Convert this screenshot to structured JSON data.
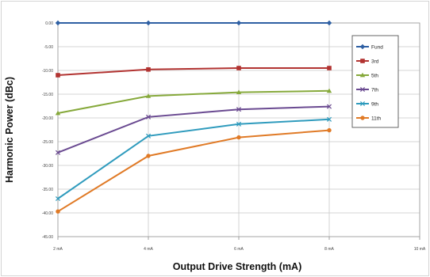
{
  "chart_data": {
    "type": "line",
    "title": "",
    "xlabel": "Output Drive Strength (mA)",
    "ylabel": "Harmonic Power (dBc)",
    "categories": [
      "2 mA",
      "4 mA",
      "6 mA",
      "8 mA",
      "10 mA"
    ],
    "x": [
      2,
      4,
      6,
      8,
      10
    ],
    "xlim": [
      2,
      10
    ],
    "ylim": [
      -45,
      0
    ],
    "yticks": [
      "0.00",
      "-5.00",
      "-10.00",
      "-15.00",
      "-20.00",
      "-25.00",
      "-30.00",
      "-35.00",
      "-40.00",
      "-45.00"
    ],
    "grid": true,
    "legend_position": "top-right",
    "series": [
      {
        "name": "Fund",
        "x": [
          2,
          4,
          6,
          8
        ],
        "values": [
          0,
          0,
          0,
          0
        ],
        "color": "#2e5fa3",
        "marker": "diamond"
      },
      {
        "name": "3rd",
        "x": [
          2,
          4,
          6,
          8
        ],
        "values": [
          -11,
          -9.8,
          -9.5,
          -9.5
        ],
        "color": "#b23331",
        "marker": "square"
      },
      {
        "name": "5th",
        "x": [
          2,
          4,
          6,
          8
        ],
        "values": [
          -19,
          -15.4,
          -14.6,
          -14.3
        ],
        "color": "#86a93b",
        "marker": "triangle"
      },
      {
        "name": "7th",
        "x": [
          2,
          4,
          6,
          8
        ],
        "values": [
          -27.3,
          -19.8,
          -18.2,
          -17.6
        ],
        "color": "#6a4a91",
        "marker": "x"
      },
      {
        "name": "9th",
        "x": [
          2,
          4,
          6,
          8
        ],
        "values": [
          -37,
          -23.8,
          -21.3,
          -20.3
        ],
        "color": "#2f9bbd",
        "marker": "x"
      },
      {
        "name": "11th",
        "x": [
          2,
          4,
          6,
          8
        ],
        "values": [
          -39.7,
          -28,
          -24.1,
          -22.6
        ],
        "color": "#e07a26",
        "marker": "circle"
      }
    ]
  }
}
